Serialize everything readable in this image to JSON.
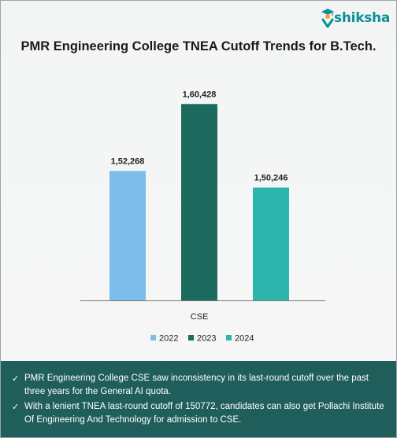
{
  "brand": {
    "name": "shiksha"
  },
  "chart_data": {
    "type": "bar",
    "title": "PMR Engineering College TNEA Cutoff Trends for B.Tech.",
    "categories": [
      "CSE"
    ],
    "series": [
      {
        "name": "2022",
        "values": [
          152268
        ],
        "label": "1,52,268",
        "color": "#7dbdeb"
      },
      {
        "name": "2023",
        "values": [
          160428
        ],
        "label": "1,60,428",
        "color": "#1d6a5e"
      },
      {
        "name": "2024",
        "values": [
          150246
        ],
        "label": "1,50,246",
        "color": "#2bb5ad"
      }
    ],
    "ylim": [
      136500,
      161700
    ],
    "grid": false,
    "legend": "bottom"
  },
  "notes": [
    "PMR Engineering College CSE saw inconsistency in its last-round cutoff over the past three years for the General AI quota.",
    "With a lenient TNEA last-round cutoff of 150772, candidates can also get Pollachi Institute Of Engineering And Technology for admission to CSE."
  ]
}
